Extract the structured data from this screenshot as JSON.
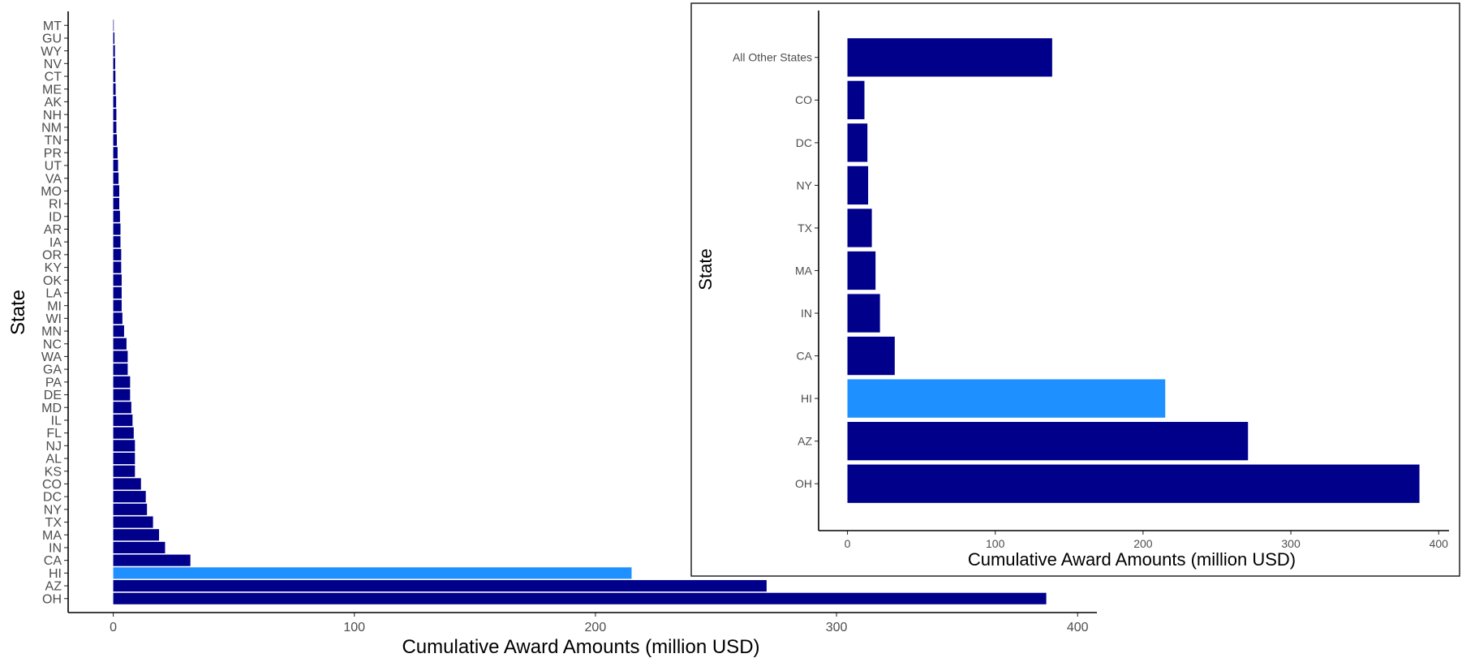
{
  "colors": {
    "bar": "#00008B",
    "highlight": "#1E90FF",
    "axis": "#000000",
    "tick_text": "#4d4d4d",
    "background": "#ffffff"
  },
  "chart_data": [
    {
      "type": "bar",
      "orientation": "horizontal",
      "xlabel": "Cumulative Award Amounts (million USD)",
      "ylabel": "State",
      "xlim": [
        -18.7,
        408
      ],
      "xticks": [
        0,
        100,
        200,
        300,
        400
      ],
      "grid": false,
      "highlight_category": "HI",
      "categories": [
        "OH",
        "AZ",
        "HI",
        "CA",
        "IN",
        "MA",
        "TX",
        "NY",
        "DC",
        "CO",
        "KS",
        "AL",
        "NJ",
        "FL",
        "IL",
        "MD",
        "DE",
        "PA",
        "GA",
        "WA",
        "NC",
        "MN",
        "WI",
        "MI",
        "LA",
        "OK",
        "KY",
        "OR",
        "IA",
        "AR",
        "ID",
        "RI",
        "MO",
        "VA",
        "UT",
        "PR",
        "TN",
        "NM",
        "NH",
        "AK",
        "ME",
        "CT",
        "NV",
        "WY",
        "GU",
        "MT"
      ],
      "values": [
        387,
        271,
        215,
        32,
        21.5,
        19,
        16.5,
        14,
        13.5,
        11.5,
        9,
        9,
        9,
        8.5,
        8,
        7.5,
        7,
        7,
        6,
        6,
        5.5,
        4.5,
        3.8,
        3.5,
        3.5,
        3.5,
        3.3,
        3.3,
        3,
        3,
        2.8,
        2.5,
        2.5,
        2.2,
        2,
        1.8,
        1.5,
        1.3,
        1.3,
        1.2,
        1,
        0.9,
        0.8,
        0.7,
        0.5,
        0.15
      ]
    },
    {
      "type": "bar",
      "orientation": "horizontal",
      "inset": true,
      "xlabel": "Cumulative Award Amounts (million USD)",
      "ylabel": "State",
      "xlim": [
        -19.5,
        407
      ],
      "xticks": [
        0,
        100,
        200,
        300,
        400
      ],
      "grid": false,
      "highlight_category": "HI",
      "categories": [
        "OH",
        "AZ",
        "HI",
        "CA",
        "IN",
        "MA",
        "TX",
        "NY",
        "DC",
        "CO",
        "All Other States"
      ],
      "values": [
        387,
        271,
        215,
        32,
        22,
        19,
        16.5,
        14,
        13.5,
        11.5,
        138.5
      ]
    }
  ]
}
